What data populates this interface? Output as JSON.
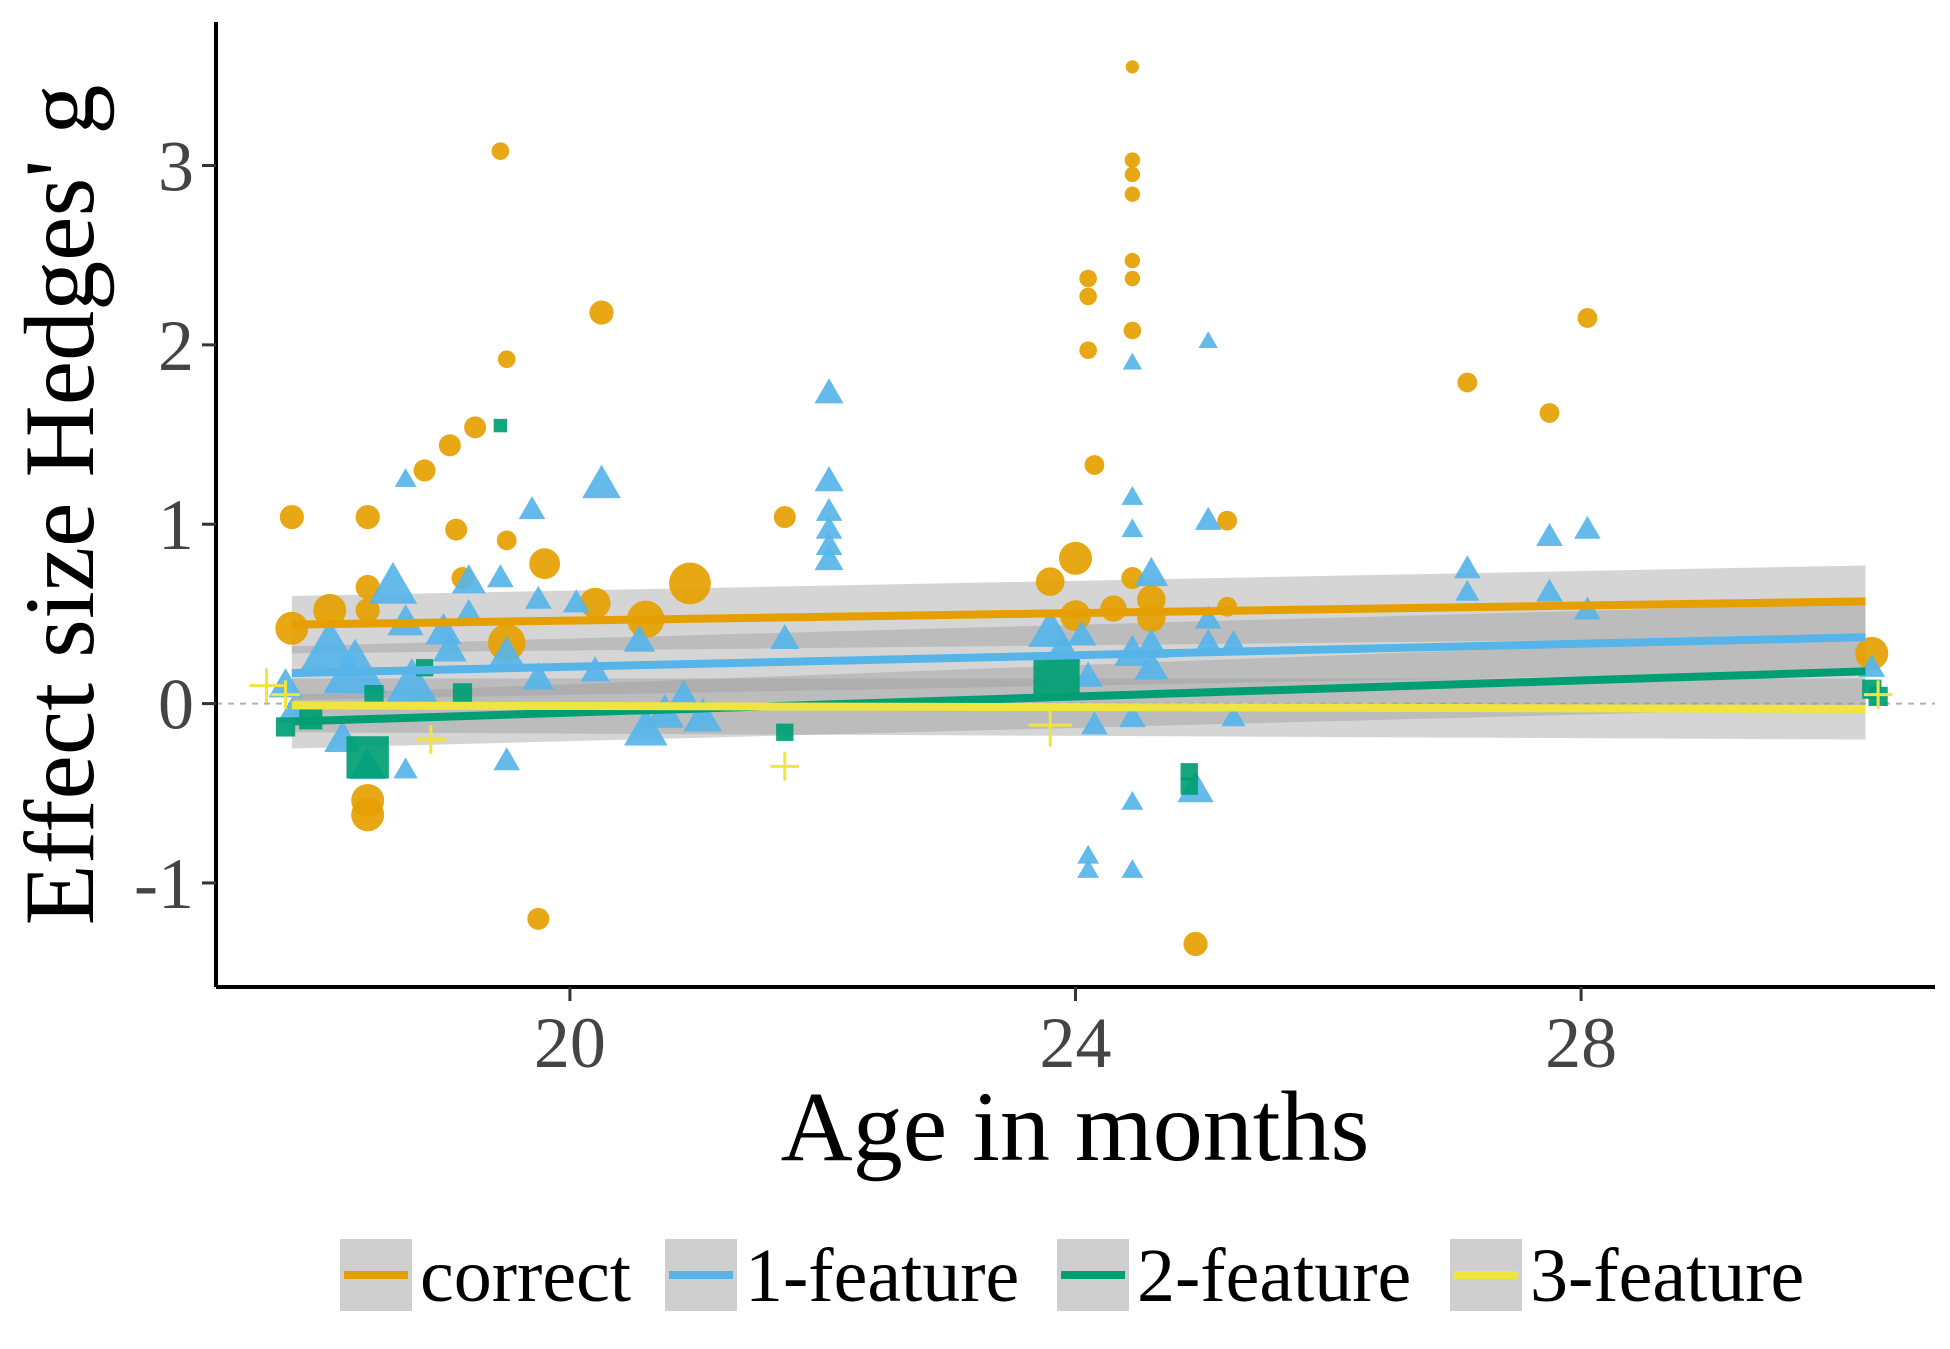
{
  "chart_data": {
    "type": "scatter",
    "xlabel": "Age in months",
    "ylabel": "Effect size Hedges' g",
    "xlim": [
      17.2,
      30.8
    ],
    "ylim": [
      -1.58,
      3.8
    ],
    "xticks": [
      20,
      24,
      28
    ],
    "yticks": [
      -1,
      0,
      1,
      2,
      3
    ],
    "grid": false,
    "legend_position": "bottom",
    "zero_line": 0,
    "series": [
      {
        "name": "correct",
        "color": "#E69F00",
        "shape": "circle",
        "trend": {
          "x": [
            17.8,
            30.25
          ],
          "y": [
            0.44,
            0.57
          ],
          "ci_low": [
            0.28,
            0.37
          ],
          "ci_high": [
            0.6,
            0.77
          ]
        },
        "points": [
          [
            17.8,
            1.04,
            1.1
          ],
          [
            17.8,
            0.42,
            1.5
          ],
          [
            18.1,
            0.52,
            1.5
          ],
          [
            18.4,
            1.04,
            1.1
          ],
          [
            18.4,
            0.65,
            1.1
          ],
          [
            18.4,
            0.52,
            1.1
          ],
          [
            18.4,
            -0.54,
            1.5
          ],
          [
            18.4,
            -0.62,
            1.5
          ],
          [
            18.85,
            1.3,
            1.0
          ],
          [
            19.05,
            1.44,
            1.0
          ],
          [
            19.1,
            0.97,
            1.0
          ],
          [
            19.15,
            0.7,
            1.0
          ],
          [
            19.25,
            1.54,
            1.0
          ],
          [
            19.45,
            3.08,
            0.8
          ],
          [
            19.5,
            1.92,
            0.8
          ],
          [
            19.5,
            0.91,
            0.9
          ],
          [
            19.5,
            0.34,
            1.7
          ],
          [
            19.75,
            -1.2,
            1.0
          ],
          [
            19.8,
            0.78,
            1.4
          ],
          [
            20.2,
            0.56,
            1.4
          ],
          [
            20.25,
            2.18,
            1.1
          ],
          [
            20.6,
            0.47,
            1.7
          ],
          [
            20.95,
            0.67,
            1.9
          ],
          [
            21.7,
            1.04,
            1.0
          ],
          [
            23.8,
            0.68,
            1.3
          ],
          [
            24.0,
            0.81,
            1.5
          ],
          [
            24.0,
            0.49,
            1.4
          ],
          [
            24.1,
            2.37,
            0.8
          ],
          [
            24.1,
            2.27,
            0.8
          ],
          [
            24.1,
            1.97,
            0.8
          ],
          [
            24.15,
            1.33,
            0.9
          ],
          [
            24.3,
            0.53,
            1.2
          ],
          [
            24.45,
            3.55,
            0.6
          ],
          [
            24.45,
            3.03,
            0.7
          ],
          [
            24.45,
            2.95,
            0.7
          ],
          [
            24.45,
            2.84,
            0.7
          ],
          [
            24.45,
            2.47,
            0.7
          ],
          [
            24.45,
            2.37,
            0.7
          ],
          [
            24.45,
            2.08,
            0.8
          ],
          [
            24.45,
            0.7,
            1.0
          ],
          [
            24.6,
            0.58,
            1.3
          ],
          [
            24.6,
            0.48,
            1.3
          ],
          [
            24.95,
            -1.34,
            1.1
          ],
          [
            25.2,
            1.02,
            0.9
          ],
          [
            25.2,
            0.54,
            0.9
          ],
          [
            27.1,
            1.79,
            0.9
          ],
          [
            27.75,
            1.62,
            0.9
          ],
          [
            28.05,
            2.15,
            0.9
          ],
          [
            30.3,
            0.28,
            1.5
          ]
        ]
      },
      {
        "name": "1-feature",
        "color": "#56B4E9",
        "shape": "triangle",
        "trend": {
          "x": [
            17.8,
            30.25
          ],
          "y": [
            0.17,
            0.37
          ],
          "ci_low": [
            0.02,
            0.18
          ],
          "ci_high": [
            0.32,
            0.56
          ]
        },
        "points": [
          [
            17.75,
            0.1,
            1.4
          ],
          [
            17.8,
            -0.05,
            1.2
          ],
          [
            18.1,
            0.3,
            2.4
          ],
          [
            18.2,
            -0.2,
            1.5
          ],
          [
            18.3,
            0.18,
            2.6
          ],
          [
            18.4,
            -0.35,
            1.5
          ],
          [
            18.6,
            0.65,
            2.0
          ],
          [
            18.7,
            0.45,
            1.5
          ],
          [
            18.7,
            1.25,
            0.9
          ],
          [
            18.75,
            0.1,
            2.2
          ],
          [
            18.7,
            -0.37,
            1.0
          ],
          [
            19.0,
            0.4,
            1.5
          ],
          [
            19.05,
            0.3,
            1.4
          ],
          [
            19.2,
            0.68,
            1.4
          ],
          [
            19.2,
            0.5,
            1.2
          ],
          [
            19.45,
            0.7,
            1.1
          ],
          [
            19.5,
            0.28,
            1.4
          ],
          [
            19.5,
            -0.32,
            1.1
          ],
          [
            19.7,
            1.08,
            1.1
          ],
          [
            19.75,
            0.58,
            1.1
          ],
          [
            19.75,
            0.14,
            1.3
          ],
          [
            20.05,
            0.56,
            1.1
          ],
          [
            20.2,
            0.18,
            1.2
          ],
          [
            20.25,
            1.22,
            1.6
          ],
          [
            20.55,
            0.35,
            1.3
          ],
          [
            20.6,
            -0.15,
            1.8
          ],
          [
            20.75,
            -0.06,
            1.6
          ],
          [
            20.9,
            0.02,
            1.6
          ],
          [
            21.05,
            -0.08,
            1.6
          ],
          [
            21.7,
            0.36,
            1.2
          ],
          [
            22.05,
            1.73,
            1.2
          ],
          [
            22.05,
            1.24,
            1.2
          ],
          [
            22.05,
            1.07,
            1.1
          ],
          [
            22.05,
            0.97,
            1.1
          ],
          [
            22.05,
            0.88,
            1.1
          ],
          [
            22.05,
            0.8,
            1.2
          ],
          [
            23.8,
            0.4,
            1.8
          ],
          [
            23.9,
            0.3,
            1.5
          ],
          [
            24.05,
            0.38,
            1.2
          ],
          [
            24.1,
            0.15,
            1.2
          ],
          [
            24.15,
            -0.12,
            1.1
          ],
          [
            24.1,
            -0.85,
            0.9
          ],
          [
            24.1,
            -0.93,
            0.9
          ],
          [
            24.45,
            1.9,
            0.8
          ],
          [
            24.45,
            1.15,
            0.9
          ],
          [
            24.45,
            0.97,
            0.9
          ],
          [
            24.45,
            0.28,
            1.5
          ],
          [
            24.45,
            -0.08,
            1.1
          ],
          [
            24.45,
            -0.55,
            0.9
          ],
          [
            24.45,
            -0.93,
            0.9
          ],
          [
            24.6,
            0.72,
            1.4
          ],
          [
            24.6,
            0.32,
            1.4
          ],
          [
            24.6,
            0.2,
            1.4
          ],
          [
            24.95,
            -0.48,
            1.5
          ],
          [
            25.05,
            2.02,
            0.8
          ],
          [
            25.05,
            1.02,
            1.1
          ],
          [
            25.05,
            0.47,
            1.1
          ],
          [
            25.05,
            0.34,
            1.1
          ],
          [
            25.25,
            0.34,
            1.0
          ],
          [
            25.25,
            -0.08,
            1.0
          ],
          [
            27.1,
            0.75,
            1.1
          ],
          [
            27.1,
            0.62,
            1.0
          ],
          [
            27.75,
            0.93,
            1.1
          ],
          [
            27.75,
            0.62,
            1.1
          ],
          [
            28.05,
            0.97,
            1.1
          ],
          [
            28.05,
            0.52,
            1.1
          ],
          [
            30.3,
            0.2,
            1.1
          ]
        ]
      },
      {
        "name": "2-feature",
        "color": "#009E73",
        "shape": "square",
        "trend": {
          "x": [
            17.8,
            30.25
          ],
          "y": [
            -0.1,
            0.18
          ],
          "ci_low": [
            -0.25,
            -0.02
          ],
          "ci_high": [
            0.05,
            0.38
          ]
        },
        "points": [
          [
            17.75,
            -0.13,
            1.0
          ],
          [
            17.95,
            -0.08,
            1.2
          ],
          [
            18.4,
            -0.3,
            2.2
          ],
          [
            18.45,
            0.05,
            1.0
          ],
          [
            18.85,
            0.2,
            0.9
          ],
          [
            19.15,
            0.06,
            1.0
          ],
          [
            19.45,
            1.55,
            0.7
          ],
          [
            21.7,
            -0.16,
            0.9
          ],
          [
            23.85,
            0.15,
            2.4
          ],
          [
            24.9,
            -0.38,
            0.9
          ],
          [
            24.9,
            -0.46,
            0.9
          ],
          [
            30.3,
            0.08,
            1.0
          ],
          [
            30.35,
            0.04,
            1.0
          ]
        ]
      },
      {
        "name": "3-feature",
        "color": "#F0E442",
        "shape": "plus",
        "trend": {
          "x": [
            17.8,
            30.25
          ],
          "y": [
            -0.01,
            -0.03
          ],
          "ci_low": [
            -0.16,
            -0.2
          ],
          "ci_high": [
            0.14,
            0.14
          ]
        },
        "points": [
          [
            17.6,
            0.1,
            1.2
          ],
          [
            17.75,
            0.05,
            1.0
          ],
          [
            18.9,
            -0.2,
            1.0
          ],
          [
            21.7,
            -0.35,
            1.0
          ],
          [
            23.8,
            -0.12,
            1.5
          ],
          [
            30.35,
            0.05,
            1.0
          ]
        ]
      }
    ]
  }
}
